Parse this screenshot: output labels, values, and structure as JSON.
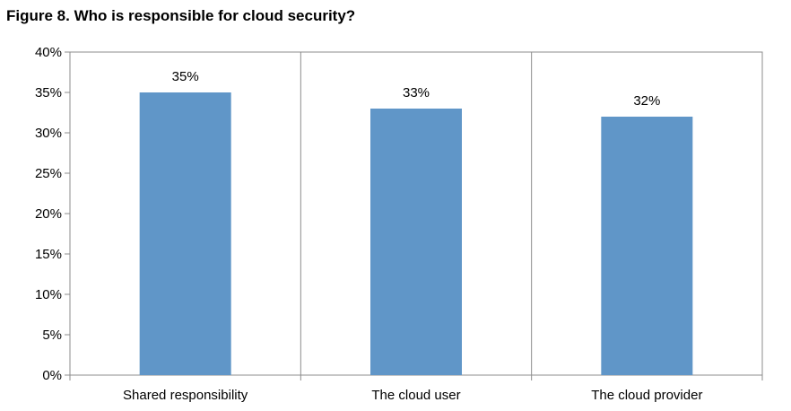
{
  "chart_data": {
    "type": "bar",
    "title": "Figure 8. Who is responsible for cloud security?",
    "categories": [
      "Shared responsibility",
      "The cloud user",
      "The cloud provider"
    ],
    "values": [
      0.35,
      0.33,
      0.32
    ],
    "data_labels": [
      "35%",
      "33%",
      "32%"
    ],
    "ylim": [
      0,
      0.4
    ],
    "yticks": [
      "0%",
      "5%",
      "10%",
      "15%",
      "20%",
      "25%",
      "30%",
      "35%",
      "40%"
    ],
    "grid": false,
    "legend": "none",
    "bar_color": "#6096c8"
  }
}
